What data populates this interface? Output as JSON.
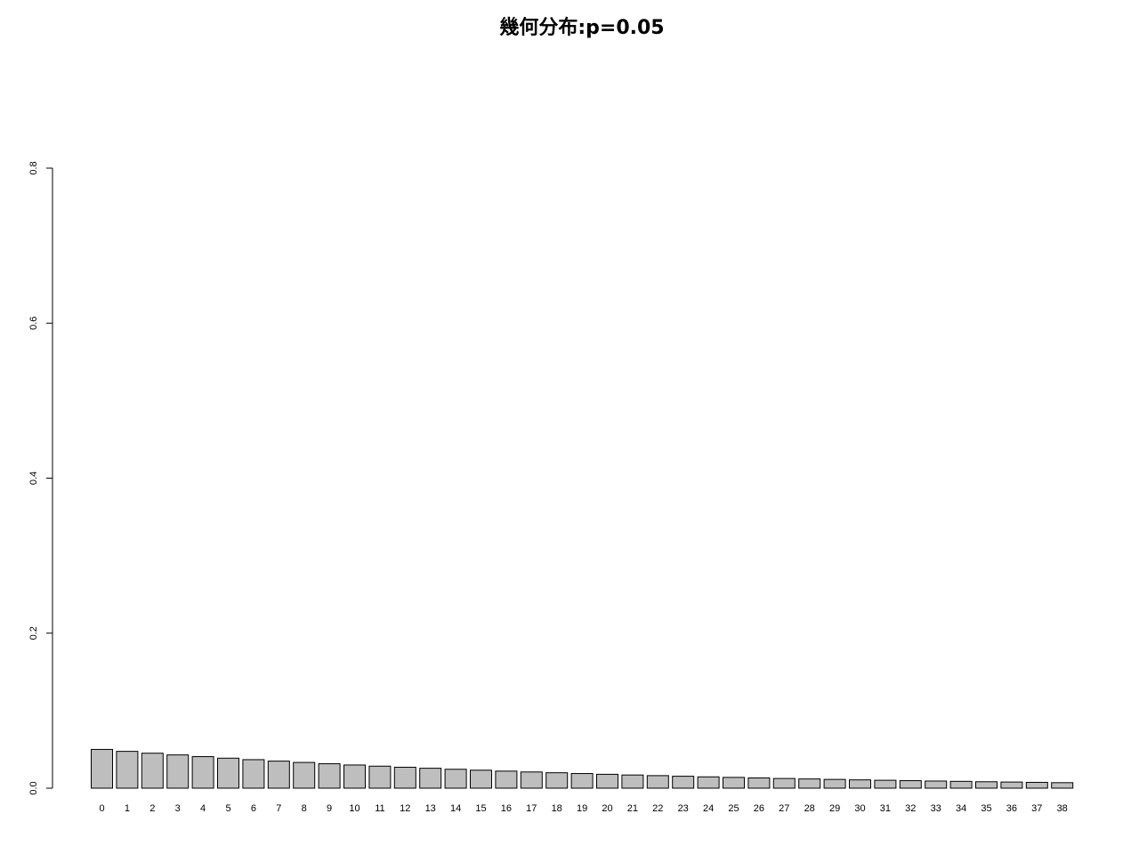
{
  "chart_data": {
    "type": "bar",
    "title": "幾何分布:p=0.05",
    "xlabel": "",
    "ylabel": "",
    "categories": [
      "0",
      "1",
      "2",
      "3",
      "4",
      "5",
      "6",
      "7",
      "8",
      "9",
      "10",
      "11",
      "12",
      "13",
      "14",
      "15",
      "16",
      "17",
      "18",
      "19",
      "20",
      "21",
      "22",
      "23",
      "24",
      "25",
      "26",
      "27",
      "28",
      "29",
      "30",
      "31",
      "32",
      "33",
      "34",
      "35",
      "36",
      "37",
      "38"
    ],
    "values": [
      0.05,
      0.0475,
      0.0451,
      0.0429,
      0.0407,
      0.0387,
      0.0368,
      0.0349,
      0.0332,
      0.0315,
      0.0299,
      0.0284,
      0.027,
      0.0257,
      0.0244,
      0.0232,
      0.022,
      0.0209,
      0.0199,
      0.0189,
      0.0179,
      0.017,
      0.0162,
      0.0154,
      0.0146,
      0.0139,
      0.0132,
      0.0125,
      0.0119,
      0.0113,
      0.0107,
      0.0102,
      0.0097,
      0.0092,
      0.0088,
      0.0083,
      0.0079,
      0.0075,
      0.0071
    ],
    "ylim": [
      0,
      0.8
    ],
    "yticks": [
      "0.0",
      "0.2",
      "0.4",
      "0.6",
      "0.8"
    ],
    "grid": false,
    "legend": "none",
    "bar_color": "#bebebe",
    "border_color": "#000000"
  }
}
